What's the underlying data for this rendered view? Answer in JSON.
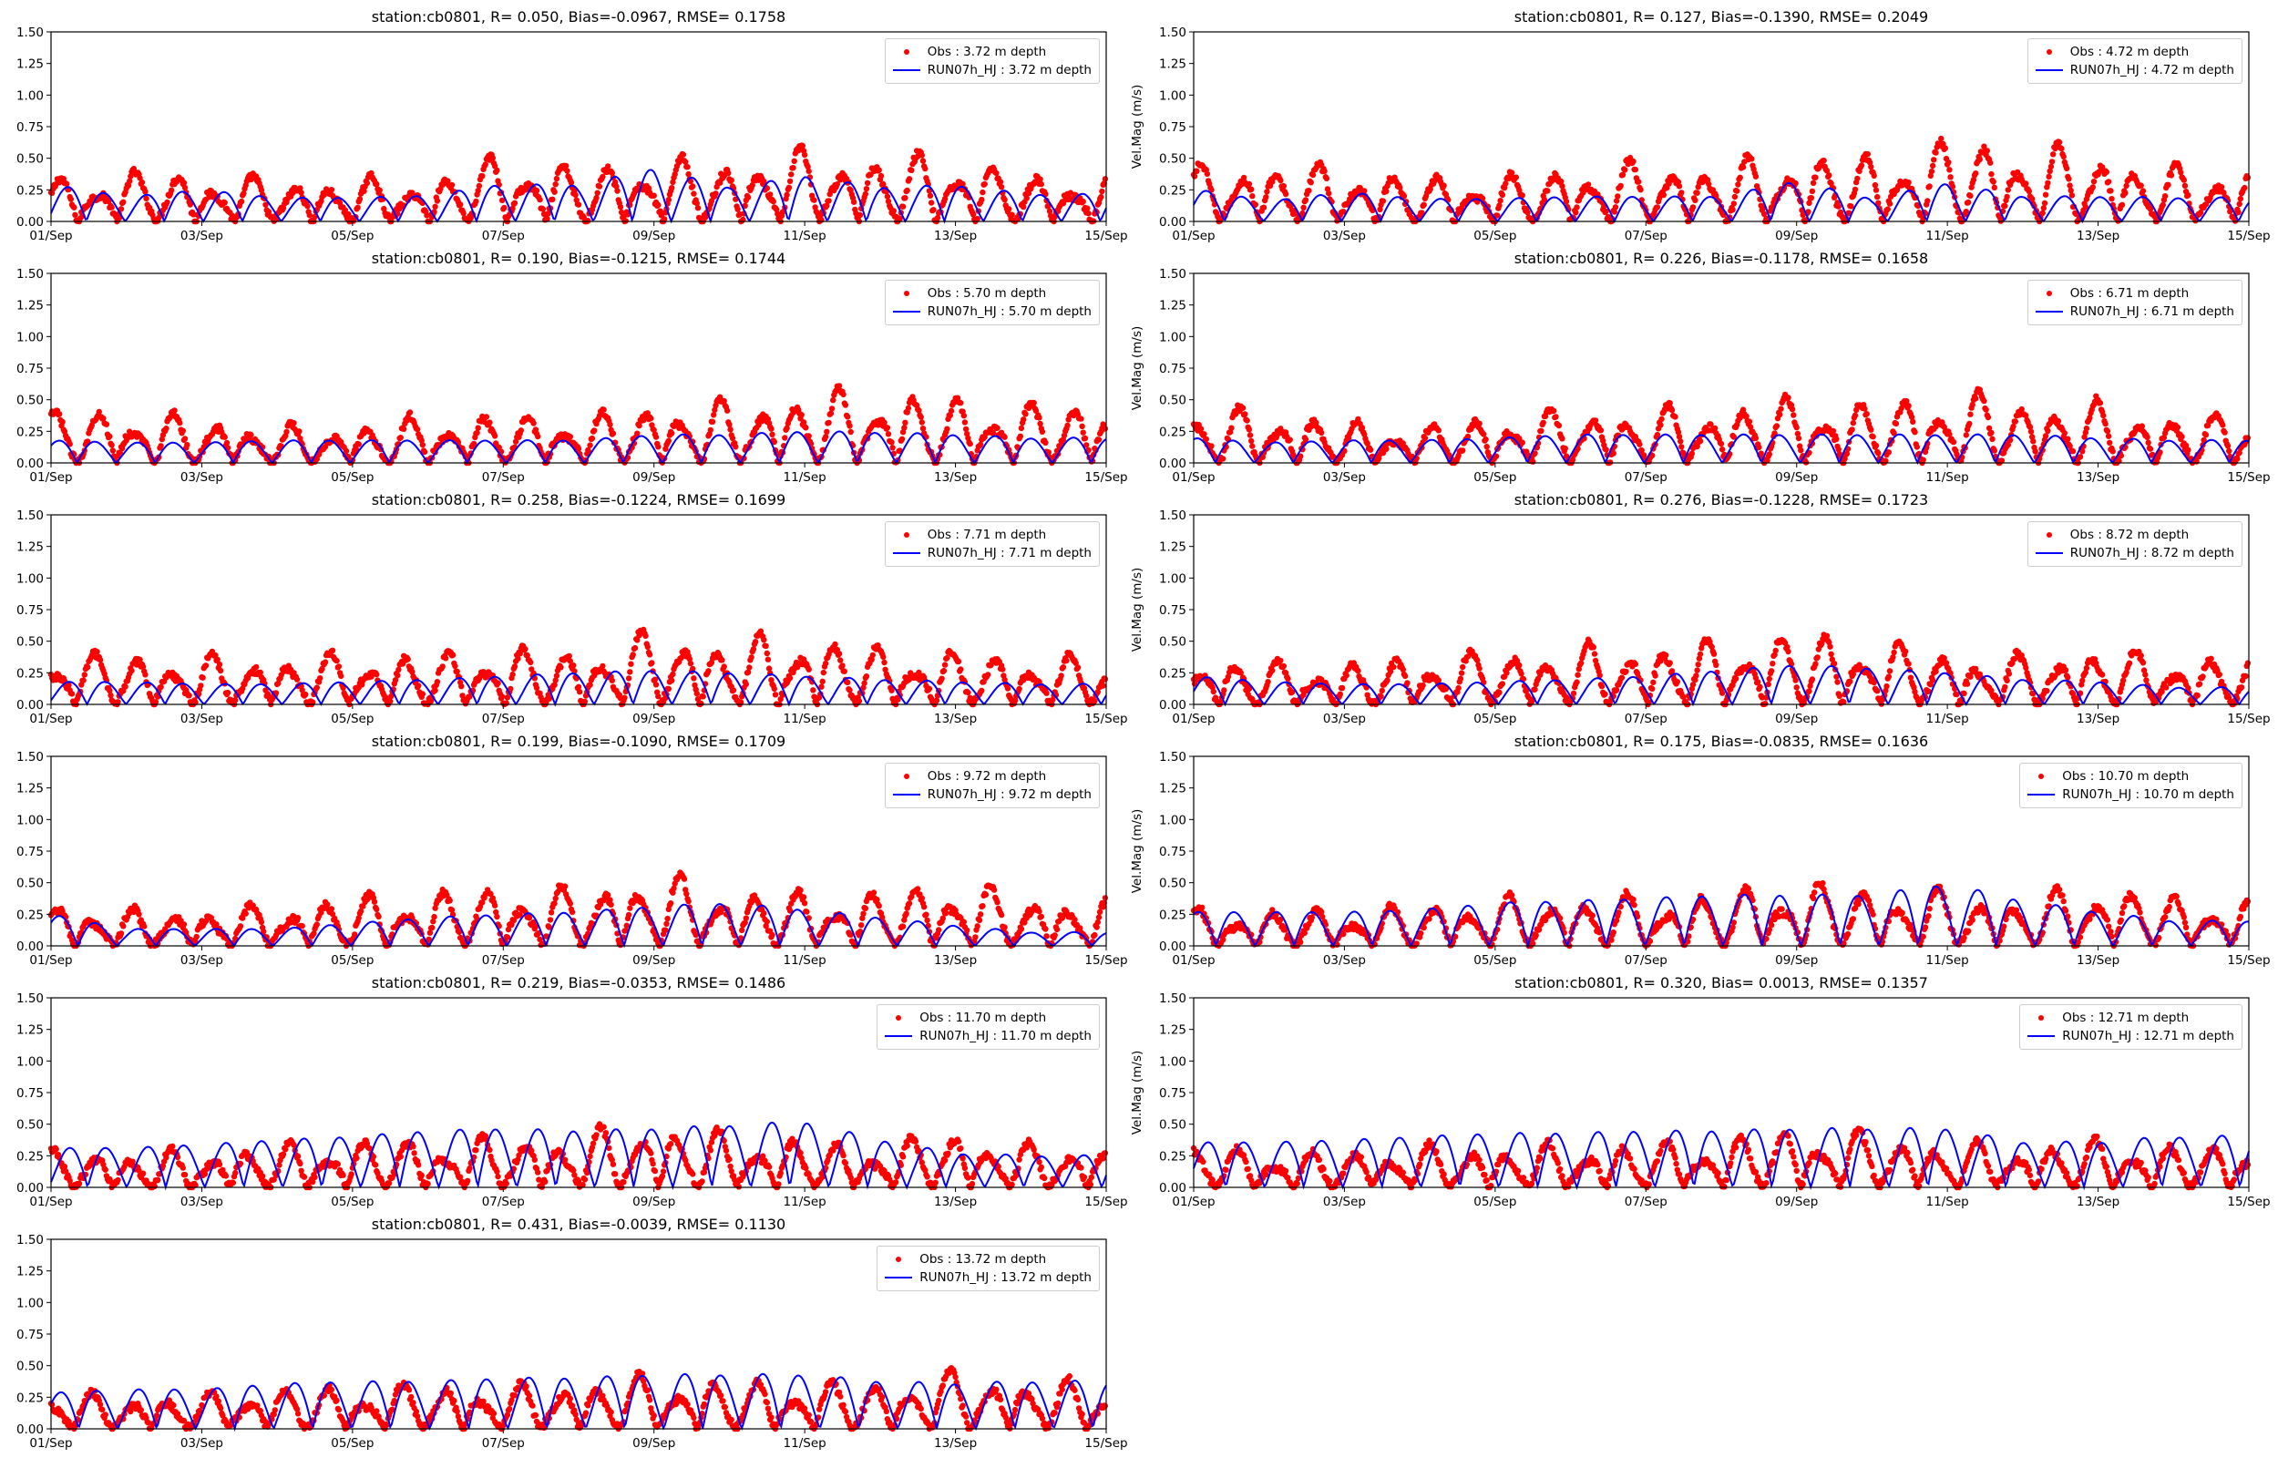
{
  "colors": {
    "obs": "#ff0000",
    "model": "#0000ff",
    "axes": "#000000"
  },
  "chart_data": [
    {
      "type": "scatter+line",
      "title": "station:cb0801, R= 0.050, Bias=-0.0967, RMSE= 0.1758",
      "ylabel": "",
      "ylim": [
        0,
        1.5
      ],
      "obs_label": "Obs : 3.72 m depth",
      "model_label": "RUN07h_HJ : 3.72 m depth",
      "series": [
        {
          "name": "Obs",
          "daily_peak": [
            0.35,
            0.43,
            0.4,
            0.35,
            0.36,
            0.35,
            0.58,
            0.45,
            0.53,
            0.52,
            0.6,
            0.55,
            0.57,
            0.38
          ]
        },
        {
          "name": "RUN07h_HJ",
          "daily_peak": [
            0.33,
            0.22,
            0.28,
            0.21,
            0.21,
            0.23,
            0.33,
            0.32,
            0.47,
            0.3,
            0.4,
            0.3,
            0.32,
            0.24
          ]
        }
      ]
    },
    {
      "type": "scatter+line",
      "title": "station:cb0801, R= 0.127, Bias=-0.1390, RMSE= 0.2049",
      "ylabel": "Vel.Mag (m/s)",
      "ylim": [
        0,
        1.5
      ],
      "obs_label": "Obs : 4.72 m depth",
      "model_label": "RUN07h_HJ : 4.72 m depth",
      "series": [
        {
          "name": "Obs",
          "daily_peak": [
            0.45,
            0.5,
            0.45,
            0.38,
            0.38,
            0.45,
            0.5,
            0.48,
            0.58,
            0.55,
            0.7,
            0.65,
            0.6,
            0.45
          ]
        },
        {
          "name": "RUN07h_HJ",
          "daily_peak": [
            0.29,
            0.18,
            0.26,
            0.2,
            0.2,
            0.22,
            0.22,
            0.22,
            0.36,
            0.2,
            0.34,
            0.22,
            0.22,
            0.21
          ]
        }
      ]
    },
    {
      "type": "scatter+line",
      "title": "station:cb0801, R= 0.190, Bias=-0.1215, RMSE= 0.1744",
      "ylabel": "",
      "ylim": [
        0,
        1.5
      ],
      "obs_label": "Obs : 5.70 m depth",
      "model_label": "RUN07h_HJ : 5.70 m depth",
      "series": [
        {
          "name": "Obs",
          "daily_peak": [
            0.45,
            0.45,
            0.38,
            0.3,
            0.32,
            0.4,
            0.4,
            0.4,
            0.5,
            0.5,
            0.6,
            0.6,
            0.55,
            0.5
          ]
        },
        {
          "name": "RUN07h_HJ",
          "daily_peak": [
            0.2,
            0.18,
            0.18,
            0.2,
            0.2,
            0.2,
            0.2,
            0.2,
            0.25,
            0.25,
            0.28,
            0.27,
            0.25,
            0.22
          ]
        }
      ]
    },
    {
      "type": "scatter+line",
      "title": "station:cb0801, R= 0.226, Bias=-0.1178, RMSE= 0.1658",
      "ylabel": "Vel.Mag (m/s)",
      "ylim": [
        0,
        1.5
      ],
      "obs_label": "Obs : 6.71 m depth",
      "model_label": "RUN07h_HJ : 6.71 m depth",
      "series": [
        {
          "name": "Obs",
          "daily_peak": [
            0.42,
            0.45,
            0.35,
            0.3,
            0.4,
            0.45,
            0.45,
            0.48,
            0.55,
            0.5,
            0.6,
            0.55,
            0.5,
            0.4
          ]
        },
        {
          "name": "RUN07h_HJ",
          "daily_peak": [
            0.22,
            0.18,
            0.2,
            0.2,
            0.22,
            0.25,
            0.25,
            0.25,
            0.25,
            0.25,
            0.25,
            0.25,
            0.22,
            0.2
          ]
        }
      ]
    },
    {
      "type": "scatter+line",
      "title": "station:cb0801, R= 0.258, Bias=-0.1224, RMSE= 0.1699",
      "ylabel": "",
      "ylim": [
        0,
        1.5
      ],
      "obs_label": "Obs : 7.71 m depth",
      "model_label": "RUN07h_HJ : 7.71 m depth",
      "series": [
        {
          "name": "Obs",
          "daily_peak": [
            0.43,
            0.43,
            0.4,
            0.4,
            0.43,
            0.42,
            0.48,
            0.45,
            0.62,
            0.55,
            0.6,
            0.48,
            0.45,
            0.4
          ]
        },
        {
          "name": "RUN07h_HJ",
          "daily_peak": [
            0.2,
            0.2,
            0.18,
            0.18,
            0.2,
            0.22,
            0.25,
            0.28,
            0.3,
            0.28,
            0.25,
            0.22,
            0.2,
            0.18
          ]
        }
      ]
    },
    {
      "type": "scatter+line",
      "title": "station:cb0801, R= 0.276, Bias=-0.1228, RMSE= 0.1723",
      "ylabel": "Vel.Mag (m/s)",
      "ylim": [
        0,
        1.5
      ],
      "obs_label": "Obs : 8.72 m depth",
      "model_label": "RUN07h_HJ : 8.72 m depth",
      "series": [
        {
          "name": "Obs",
          "daily_peak": [
            0.38,
            0.35,
            0.35,
            0.4,
            0.45,
            0.48,
            0.5,
            0.52,
            0.62,
            0.55,
            0.45,
            0.4,
            0.48,
            0.4
          ]
        },
        {
          "name": "RUN07h_HJ",
          "daily_peak": [
            0.25,
            0.2,
            0.18,
            0.18,
            0.2,
            0.22,
            0.25,
            0.3,
            0.35,
            0.32,
            0.28,
            0.22,
            0.2,
            0.15
          ]
        }
      ]
    },
    {
      "type": "scatter+line",
      "title": "station:cb0801, R= 0.199, Bias=-0.1090, RMSE= 0.1709",
      "ylabel": "",
      "ylim": [
        0,
        1.5
      ],
      "obs_label": "Obs : 9.72 m depth",
      "model_label": "RUN07h_HJ : 9.72 m depth",
      "series": [
        {
          "name": "Obs",
          "daily_peak": [
            0.35,
            0.3,
            0.3,
            0.35,
            0.42,
            0.45,
            0.5,
            0.48,
            0.62,
            0.48,
            0.45,
            0.45,
            0.55,
            0.4
          ]
        },
        {
          "name": "RUN07h_HJ",
          "daily_peak": [
            0.28,
            0.15,
            0.15,
            0.15,
            0.2,
            0.25,
            0.28,
            0.3,
            0.35,
            0.38,
            0.32,
            0.25,
            0.18,
            0.12
          ]
        }
      ]
    },
    {
      "type": "scatter+line",
      "title": "station:cb0801, R= 0.175, Bias=-0.0835, RMSE= 0.1636",
      "ylabel": "Vel.Mag (m/s)",
      "ylim": [
        0,
        1.5
      ],
      "obs_label": "Obs : 10.70 m depth",
      "model_label": "RUN07h_HJ : 10.70 m depth",
      "series": [
        {
          "name": "Obs",
          "daily_peak": [
            0.3,
            0.3,
            0.3,
            0.35,
            0.4,
            0.42,
            0.42,
            0.45,
            0.55,
            0.5,
            0.45,
            0.4,
            0.55,
            0.4
          ]
        },
        {
          "name": "RUN07h_HJ",
          "daily_peak": [
            0.3,
            0.3,
            0.3,
            0.32,
            0.38,
            0.4,
            0.42,
            0.45,
            0.45,
            0.45,
            0.55,
            0.4,
            0.3,
            0.22
          ]
        }
      ]
    },
    {
      "type": "scatter+line",
      "title": "station:cb0801, R= 0.219, Bias=-0.0353, RMSE= 0.1486",
      "ylabel": "",
      "ylim": [
        0,
        1.5
      ],
      "obs_label": "Obs : 11.70 m depth",
      "model_label": "RUN07h_HJ : 11.70 m depth",
      "series": [
        {
          "name": "Obs",
          "daily_peak": [
            0.3,
            0.3,
            0.3,
            0.35,
            0.4,
            0.4,
            0.42,
            0.45,
            0.55,
            0.45,
            0.4,
            0.35,
            0.48,
            0.35
          ]
        },
        {
          "name": "RUN07h_HJ",
          "daily_peak": [
            0.35,
            0.35,
            0.38,
            0.42,
            0.45,
            0.5,
            0.52,
            0.5,
            0.52,
            0.55,
            0.58,
            0.42,
            0.3,
            0.28
          ]
        }
      ]
    },
    {
      "type": "scatter+line",
      "title": "station:cb0801, R= 0.320, Bias= 0.0013, RMSE= 0.1357",
      "ylabel": "Vel.Mag (m/s)",
      "ylim": [
        0,
        1.5
      ],
      "obs_label": "Obs : 12.71 m depth",
      "model_label": "RUN07h_HJ : 12.71 m depth",
      "series": [
        {
          "name": "Obs",
          "daily_peak": [
            0.35,
            0.3,
            0.3,
            0.35,
            0.35,
            0.35,
            0.38,
            0.4,
            0.5,
            0.45,
            0.4,
            0.35,
            0.4,
            0.35
          ]
        },
        {
          "name": "RUN07h_HJ",
          "daily_peak": [
            0.4,
            0.4,
            0.42,
            0.45,
            0.48,
            0.48,
            0.5,
            0.5,
            0.52,
            0.52,
            0.52,
            0.4,
            0.4,
            0.45
          ]
        }
      ]
    },
    {
      "type": "scatter+line",
      "title": "station:cb0801, R= 0.431, Bias=-0.0039, RMSE= 0.1130",
      "ylabel": "",
      "ylim": [
        0,
        1.5
      ],
      "obs_label": "Obs : 13.72 m depth",
      "model_label": "RUN07h_HJ : 13.72 m depth",
      "series": [
        {
          "name": "Obs",
          "daily_peak": [
            0.3,
            0.28,
            0.28,
            0.35,
            0.35,
            0.38,
            0.35,
            0.4,
            0.45,
            0.4,
            0.4,
            0.38,
            0.48,
            0.4
          ]
        },
        {
          "name": "RUN07h_HJ",
          "daily_peak": [
            0.32,
            0.35,
            0.35,
            0.4,
            0.42,
            0.42,
            0.45,
            0.45,
            0.48,
            0.48,
            0.48,
            0.42,
            0.4,
            0.42
          ]
        }
      ]
    }
  ],
  "axes": {
    "xticks": [
      "01/Sep",
      "03/Sep",
      "05/Sep",
      "07/Sep",
      "09/Sep",
      "11/Sep",
      "13/Sep",
      "15/Sep"
    ],
    "xtick_days": [
      0,
      2,
      4,
      6,
      8,
      10,
      12,
      14
    ],
    "xlim_days": [
      0,
      14
    ],
    "yticks": [
      "0.00",
      "0.25",
      "0.50",
      "0.75",
      "1.00",
      "1.25",
      "1.50"
    ],
    "ytick_values": [
      0,
      0.25,
      0.5,
      0.75,
      1.0,
      1.25,
      1.5
    ]
  }
}
